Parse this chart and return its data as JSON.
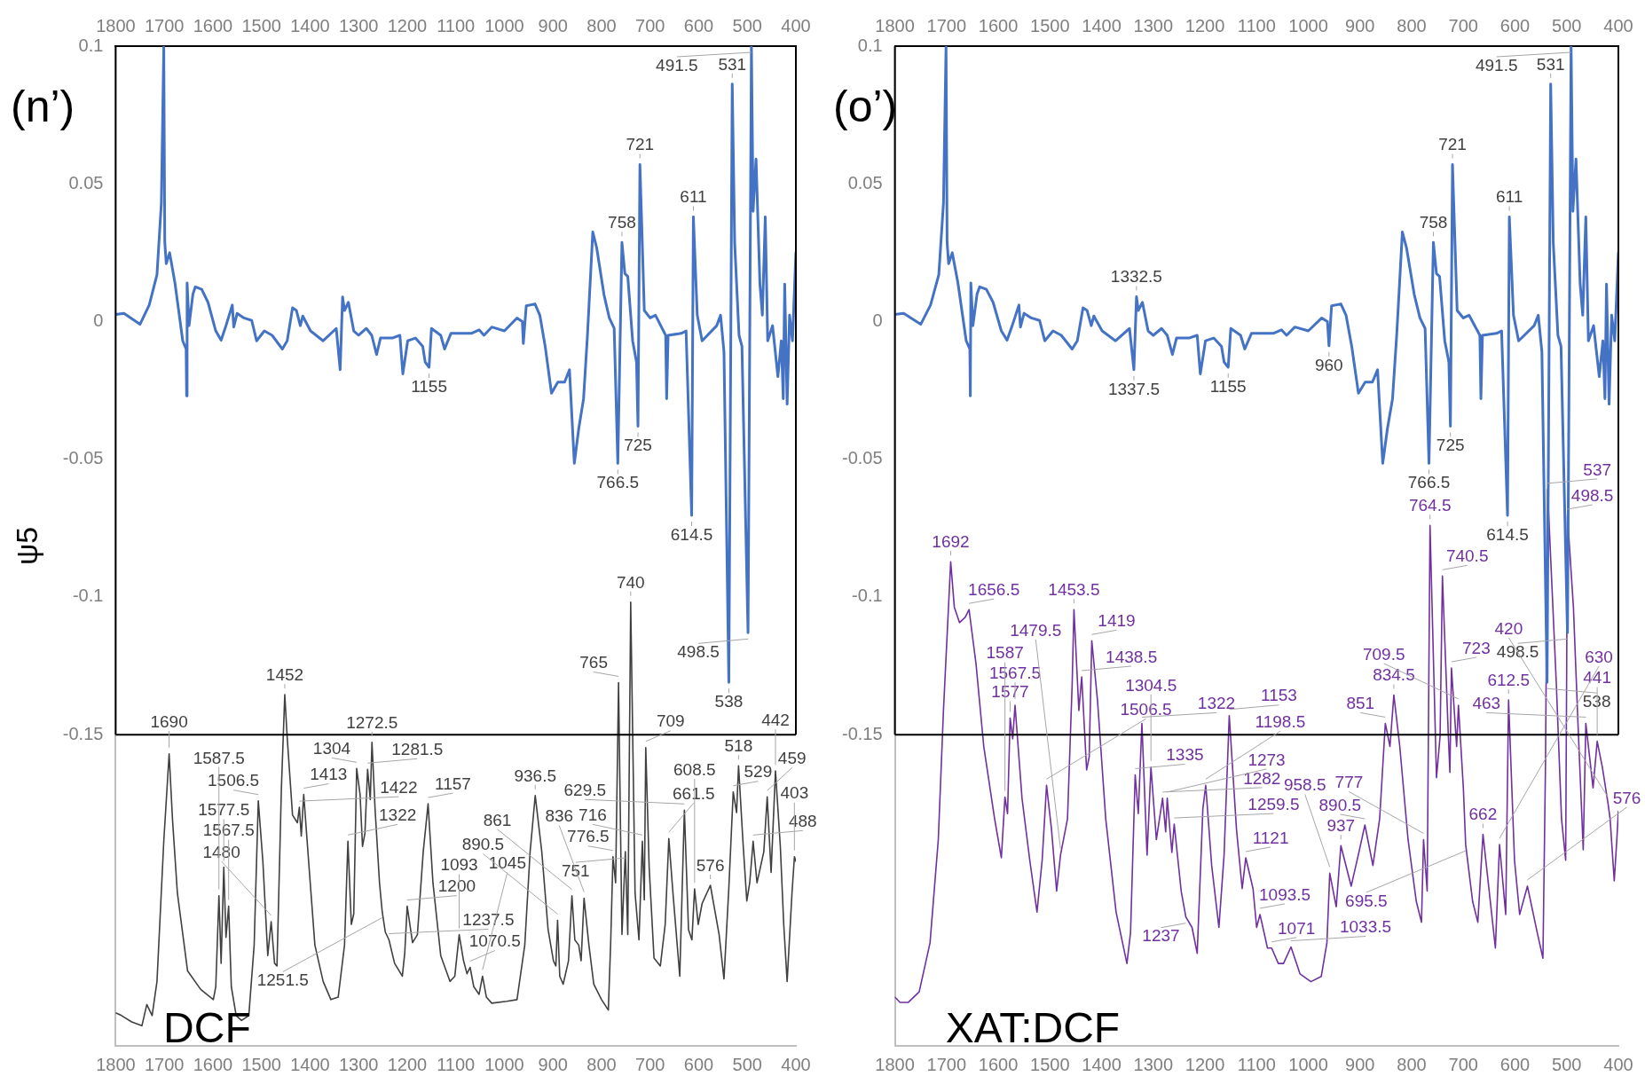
{
  "chart_data": [
    {
      "type": "line",
      "title": "(n’)",
      "ylabel": "ψ5",
      "xlim": [
        1800,
        400
      ],
      "xticks": [
        1800,
        1700,
        1600,
        1500,
        1400,
        1300,
        1200,
        1100,
        1000,
        900,
        800,
        700,
        600,
        500,
        400
      ],
      "x2lim": [
        1800,
        400
      ],
      "x2ticks": [
        1800,
        1700,
        1600,
        1500,
        1400,
        1300,
        1200,
        1100,
        1000,
        900,
        800,
        700,
        600,
        500,
        400
      ],
      "ylim": [
        -0.263,
        0.1
      ],
      "yticks": [
        0.1,
        0.05,
        0,
        -0.05,
        -0.1,
        -0.15
      ],
      "ref_lines": [
        {
          "axis": "y",
          "value": -0.15,
          "color": "#000000"
        }
      ],
      "series": [
        {
          "color": "#4472c4",
          "x": [
            1800,
            1783,
            1750,
            1731,
            1715,
            1706,
            1701,
            1699,
            1696,
            1689,
            1678,
            1662,
            1655,
            1654,
            1653,
            1649,
            1641,
            1636,
            1623,
            1610,
            1594,
            1583,
            1573,
            1560,
            1557,
            1550,
            1536,
            1520,
            1510,
            1494,
            1478,
            1457,
            1447,
            1436,
            1428,
            1420,
            1415,
            1399,
            1373,
            1346,
            1338,
            1333,
            1329,
            1321,
            1310,
            1300,
            1284,
            1273,
            1263,
            1255,
            1231,
            1215,
            1209,
            1199,
            1183,
            1168,
            1163,
            1155,
            1150,
            1131,
            1123,
            1110,
            1068,
            1052,
            1042,
            1026,
            1000,
            974,
            963,
            961,
            955,
            937,
            927,
            916,
            903,
            890,
            876,
            866,
            856,
            847,
            837,
            829,
            818,
            810,
            795,
            784,
            774,
            766.5,
            758,
            752,
            746,
            736,
            728,
            725,
            721,
            712,
            700,
            689,
            668,
            666,
            663,
            636,
            626,
            614.5,
            611,
            603,
            593,
            563,
            555,
            548,
            538,
            531,
            526,
            517,
            511,
            498.5,
            491.5,
            488,
            482,
            474,
            469,
            463,
            458,
            448,
            437,
            430,
            426,
            423,
            418,
            413,
            407,
            400
          ],
          "values": [
            0.0026,
            0.003,
            -0.001,
            0.006,
            0.017,
            0.043,
            0.1,
            0.029,
            0.021,
            0.025,
            0.014,
            -0.007,
            -0.01,
            -0.027,
            0.014,
            -0.0015,
            0.01,
            0.0126,
            0.0117,
            0.007,
            -0.0034,
            -0.0068,
            -0.0015,
            0.006,
            -0.002,
            0.003,
            0.0013,
            0.0004,
            -0.007,
            -0.0034,
            -0.005,
            -0.01,
            -0.007,
            0.005,
            0.004,
            -0.0015,
            0.002,
            -0.0034,
            -0.007,
            -0.0025,
            -0.0175,
            0.0089,
            0.004,
            0.007,
            -0.0034,
            -0.005,
            -0.0025,
            -0.005,
            -0.012,
            -0.006,
            -0.006,
            -0.005,
            -0.019,
            -0.007,
            -0.006,
            -0.009,
            -0.0147,
            -0.0166,
            -0.0025,
            -0.005,
            -0.01,
            -0.0043,
            -0.0043,
            -0.003,
            -0.005,
            -0.002,
            -0.0034,
            0.0013,
            0,
            -0.008,
            0.0057,
            0.0064,
            0.0023,
            -0.009,
            -0.026,
            -0.022,
            -0.022,
            -0.0175,
            -0.0515,
            -0.039,
            -0.028,
            -0.005,
            0.0325,
            0.0268,
            0.0098,
            0.0013,
            -0.0025,
            -0.0515,
            0.0287,
            0.0174,
            0.0164,
            -0.007,
            -0.0147,
            -0.038,
            0.057,
            0.004,
            0.0013,
            0.0023,
            -0.005,
            -0.028,
            -0.005,
            -0.0043,
            -0.0034,
            -0.0704,
            0.038,
            0.0023,
            -0.007,
            -0.0015,
            0.0023,
            -0.011,
            -0.131,
            0.0862,
            0.0287,
            -0.005,
            -0.009,
            -0.113,
            0.1,
            0.04,
            0.059,
            0.0136,
            0.0023,
            0.038,
            -0.007,
            -0.0015,
            -0.02,
            -0.007,
            -0.028,
            0.0136,
            -0.03,
            0.0023,
            -0.007,
            0.025
          ]
        },
        {
          "name": "DCF",
          "color": "#404040",
          "x": [
            1800,
            1788,
            1767,
            1746,
            1736,
            1725,
            1715,
            1701,
            1690,
            1683,
            1673,
            1652,
            1625,
            1599,
            1594,
            1587.5,
            1583,
            1577.5,
            1573,
            1567.5,
            1562,
            1552,
            1541,
            1526,
            1515,
            1506.5,
            1497,
            1487,
            1480,
            1473,
            1468,
            1459,
            1452,
            1447,
            1436,
            1426,
            1422,
            1418,
            1413,
            1402,
            1390,
            1373,
            1357,
            1342,
            1329,
            1322,
            1315,
            1310,
            1304,
            1297,
            1292,
            1287,
            1281.5,
            1276,
            1272.5,
            1266,
            1257,
            1251.5,
            1245,
            1237.5,
            1226,
            1210,
            1205,
            1200,
            1189,
            1179,
            1167,
            1157,
            1147,
            1131,
            1112,
            1102,
            1093,
            1084,
            1077,
            1070.5,
            1063,
            1052,
            1045,
            1037,
            1026,
            995,
            974,
            958,
            947,
            936.5,
            923,
            910,
            899,
            894,
            890.5,
            886,
            879,
            868,
            861,
            855,
            847,
            842,
            836,
            826,
            816,
            800,
            786,
            781,
            776.5,
            771,
            765,
            758,
            751,
            746,
            740,
            731,
            723,
            716,
            712,
            709,
            702,
            692,
            679,
            669,
            661.5,
            653,
            639,
            629.5,
            621,
            614,
            608.5,
            601,
            593,
            576,
            558,
            548,
            538,
            529,
            522,
            518,
            509,
            501,
            495,
            488,
            480,
            466,
            459,
            451,
            442,
            432,
            425,
            418,
            408,
            403,
            400
          ],
          "values": [
            -0.251,
            -0.252,
            -0.2543,
            -0.2557,
            -0.248,
            -0.252,
            -0.2396,
            -0.1887,
            -0.157,
            -0.181,
            -0.2075,
            -0.2358,
            -0.2425,
            -0.2462,
            -0.2415,
            -0.2085,
            -0.233,
            -0.1981,
            -0.2236,
            -0.2123,
            -0.2415,
            -0.252,
            -0.2538,
            -0.252,
            -0.2264,
            -0.174,
            -0.1962,
            -0.2302,
            -0.2179,
            -0.233,
            -0.234,
            -0.1698,
            -0.1355,
            -0.151,
            -0.1792,
            -0.182,
            -0.1764,
            -0.1868,
            -0.1717,
            -0.1981,
            -0.2264,
            -0.2396,
            -0.2462,
            -0.2453,
            -0.2264,
            -0.1887,
            -0.2189,
            -0.2151,
            -0.1623,
            -0.1717,
            -0.1906,
            -0.1858,
            -0.1626,
            -0.1736,
            -0.1528,
            -0.1774,
            -0.2038,
            -0.2142,
            -0.2217,
            -0.2245,
            -0.233,
            -0.2377,
            -0.2292,
            -0.2123,
            -0.2255,
            -0.2226,
            -0.1925,
            -0.1751,
            -0.2038,
            -0.2302,
            -0.2396,
            -0.2377,
            -0.2226,
            -0.2321,
            -0.2368,
            -0.2345,
            -0.2415,
            -0.2443,
            -0.2377,
            -0.2453,
            -0.2475,
            -0.2468,
            -0.2462,
            -0.2264,
            -0.1925,
            -0.1721,
            -0.1925,
            -0.2208,
            -0.2321,
            -0.234,
            -0.2174,
            -0.2377,
            -0.2406,
            -0.2321,
            -0.2085,
            -0.2245,
            -0.2264,
            -0.2321,
            -0.2094,
            -0.2264,
            -0.2406,
            -0.2462,
            -0.25,
            -0.2245,
            -0.1943,
            -0.2038,
            -0.1311,
            -0.2226,
            -0.1925,
            -0.2226,
            -0.1019,
            -0.2075,
            -0.2245,
            -0.1887,
            -0.21,
            -0.1547,
            -0.1981,
            -0.2311,
            -0.234,
            -0.2189,
            -0.1877,
            -0.2075,
            -0.2377,
            -0.1774,
            -0.2208,
            -0.2245,
            -0.206,
            -0.2189,
            -0.2113,
            -0.2047,
            -0.2226,
            -0.2387,
            -0.2057,
            -0.1708,
            -0.1783,
            -0.1613,
            -0.1887,
            -0.2104,
            -0.2038,
            -0.1887,
            -0.2038,
            -0.1925,
            -0.1726,
            -0.2,
            -0.1632,
            -0.1906,
            -0.2189,
            -0.2396,
            -0.2075,
            -0.1943,
            -0.196
          ]
        }
      ],
      "annotations": [
        {
          "text": "531",
          "x": 531,
          "y": 0.0862
        },
        {
          "text": "491.5",
          "x": 491.5,
          "y": 0.1
        },
        {
          "text": "721",
          "x": 721,
          "y": 0.057
        },
        {
          "text": "611",
          "x": 611,
          "y": 0.038
        },
        {
          "text": "758",
          "x": 758,
          "y": 0.0287
        },
        {
          "text": "1155",
          "x": 1155,
          "y": -0.0166
        },
        {
          "text": "725",
          "x": 725,
          "y": -0.038
        },
        {
          "text": "766.5",
          "x": 766.5,
          "y": -0.0515
        },
        {
          "text": "614.5",
          "x": 614.5,
          "y": -0.0704
        },
        {
          "text": "538",
          "x": 538,
          "y": -0.131
        },
        {
          "text": "498.5",
          "x": 498.5,
          "y": -0.113
        },
        {
          "text": "740",
          "x": 740,
          "y": -0.1019
        },
        {
          "text": "751",
          "x": 751,
          "y": -0.1925
        },
        {
          "text": "765",
          "x": 765,
          "y": -0.1311
        },
        {
          "text": "776.5",
          "x": 776.5,
          "y": -0.1943
        },
        {
          "text": "716",
          "x": 716,
          "y": -0.1887
        },
        {
          "text": "709",
          "x": 709,
          "y": -0.1547
        },
        {
          "text": "661.5",
          "x": 661.5,
          "y": -0.1877
        },
        {
          "text": "629.5",
          "x": 629.5,
          "y": -0.1774
        },
        {
          "text": "608.5",
          "x": 608.5,
          "y": -0.206
        },
        {
          "text": "576",
          "x": 576,
          "y": -0.2047
        },
        {
          "text": "529",
          "x": 529,
          "y": -0.1708
        },
        {
          "text": "518",
          "x": 518,
          "y": -0.1613
        },
        {
          "text": "488",
          "x": 488,
          "y": -0.1887
        },
        {
          "text": "459",
          "x": 459,
          "y": -0.1726
        },
        {
          "text": "442",
          "x": 442,
          "y": -0.1632
        },
        {
          "text": "403",
          "x": 403,
          "y": -0.1943
        },
        {
          "text": "1452",
          "x": 1452,
          "y": -0.1355
        },
        {
          "text": "1480",
          "x": 1480,
          "y": -0.2179
        },
        {
          "text": "1506.5",
          "x": 1506.5,
          "y": -0.174
        },
        {
          "text": "1422",
          "x": 1422,
          "y": -0.1764
        },
        {
          "text": "1413",
          "x": 1413,
          "y": -0.1717
        },
        {
          "text": "1690",
          "x": 1690,
          "y": -0.157
        },
        {
          "text": "1567.5",
          "x": 1567.5,
          "y": -0.2123
        },
        {
          "text": "1577.5",
          "x": 1577.5,
          "y": -0.1981
        },
        {
          "text": "1587.5",
          "x": 1587.5,
          "y": -0.2085
        },
        {
          "text": "1304",
          "x": 1304,
          "y": -0.1623
        },
        {
          "text": "1281.5",
          "x": 1281.5,
          "y": -0.1626
        },
        {
          "text": "1272.5",
          "x": 1272.5,
          "y": -0.1528
        },
        {
          "text": "1322",
          "x": 1322,
          "y": -0.1887
        },
        {
          "text": "1251.5",
          "x": 1251.5,
          "y": -0.2142
        },
        {
          "text": "1237.5",
          "x": 1237.5,
          "y": -0.2245
        },
        {
          "text": "1200",
          "x": 1200,
          "y": -0.2123
        },
        {
          "text": "1157",
          "x": 1157,
          "y": -0.1751
        },
        {
          "text": "1093",
          "x": 1093,
          "y": -0.2226
        },
        {
          "text": "1070.5",
          "x": 1070.5,
          "y": -0.2345
        },
        {
          "text": "1045",
          "x": 1045,
          "y": -0.2377
        },
        {
          "text": "936.5",
          "x": 936.5,
          "y": -0.1721
        },
        {
          "text": "890.5",
          "x": 890.5,
          "y": -0.2174
        },
        {
          "text": "861",
          "x": 861,
          "y": -0.2085
        },
        {
          "text": "836",
          "x": 836,
          "y": -0.2094
        }
      ]
    },
    {
      "type": "line",
      "title": "(o’)",
      "xlim": [
        1800,
        400
      ],
      "xticks": [
        1800,
        1700,
        1600,
        1500,
        1400,
        1300,
        1200,
        1100,
        1000,
        900,
        800,
        700,
        600,
        500,
        400
      ],
      "x2lim": [
        1800,
        400
      ],
      "x2ticks": [
        1800,
        1700,
        1600,
        1500,
        1400,
        1300,
        1200,
        1100,
        1000,
        900,
        800,
        700,
        600,
        500,
        400
      ],
      "ylim": [
        -0.263,
        0.1
      ],
      "yticks": [
        0.1,
        0.05,
        0,
        -0.05,
        -0.1,
        -0.15
      ],
      "ref_lines": [
        {
          "axis": "y",
          "value": -0.15,
          "color": "#000000"
        }
      ],
      "series": [
        {
          "color": "#4472c4",
          "x": [
            1800,
            1783,
            1750,
            1731,
            1715,
            1706,
            1701,
            1699,
            1696,
            1689,
            1678,
            1662,
            1655,
            1654,
            1653,
            1649,
            1641,
            1636,
            1623,
            1610,
            1594,
            1583,
            1573,
            1560,
            1557,
            1550,
            1536,
            1520,
            1510,
            1494,
            1478,
            1457,
            1447,
            1436,
            1428,
            1420,
            1415,
            1399,
            1373,
            1346,
            1337.5,
            1332.5,
            1329,
            1321,
            1310,
            1300,
            1284,
            1273,
            1263,
            1255,
            1231,
            1215,
            1209,
            1199,
            1183,
            1168,
            1163,
            1155,
            1150,
            1131,
            1123,
            1110,
            1068,
            1052,
            1042,
            1026,
            1000,
            974,
            963,
            960,
            955,
            937,
            927,
            916,
            903,
            890,
            876,
            866,
            856,
            847,
            837,
            829,
            818,
            810,
            795,
            784,
            774,
            766.5,
            758,
            752,
            746,
            736,
            728,
            725,
            721,
            712,
            700,
            689,
            668,
            666,
            663,
            636,
            626,
            614.5,
            611,
            603,
            593,
            563,
            555,
            548,
            538,
            531,
            526,
            517,
            511,
            498.5,
            491.5,
            488,
            482,
            474,
            469,
            463,
            458,
            448,
            437,
            430,
            426,
            423,
            418,
            413,
            407,
            400
          ],
          "values": [
            0.0026,
            0.003,
            -0.001,
            0.006,
            0.017,
            0.043,
            0.1,
            0.029,
            0.021,
            0.025,
            0.014,
            -0.007,
            -0.01,
            -0.027,
            0.014,
            -0.0015,
            0.01,
            0.0126,
            0.0117,
            0.007,
            -0.0034,
            -0.0068,
            -0.0015,
            0.006,
            -0.002,
            0.003,
            0.0013,
            0.0004,
            -0.007,
            -0.0034,
            -0.005,
            -0.01,
            -0.007,
            0.005,
            0.004,
            -0.0015,
            0.002,
            -0.0034,
            -0.007,
            -0.0025,
            -0.0175,
            0.009,
            0.004,
            0.007,
            -0.0034,
            -0.005,
            -0.0025,
            -0.005,
            -0.012,
            -0.006,
            -0.006,
            -0.005,
            -0.019,
            -0.007,
            -0.006,
            -0.009,
            -0.0147,
            -0.0166,
            -0.0025,
            -0.005,
            -0.01,
            -0.0043,
            -0.0043,
            -0.003,
            -0.005,
            -0.002,
            -0.0034,
            0.0013,
            0,
            -0.0088,
            0.0057,
            0.0064,
            0.0023,
            -0.009,
            -0.026,
            -0.022,
            -0.022,
            -0.0175,
            -0.0515,
            -0.039,
            -0.028,
            -0.005,
            0.0325,
            0.0268,
            0.0098,
            0.0013,
            -0.0025,
            -0.0515,
            0.0287,
            0.0174,
            0.0164,
            -0.007,
            -0.0147,
            -0.038,
            0.057,
            0.004,
            0.0013,
            0.0023,
            -0.005,
            -0.028,
            -0.005,
            -0.0043,
            -0.0034,
            -0.0704,
            0.038,
            0.0023,
            -0.007,
            -0.0015,
            0.0023,
            -0.011,
            -0.131,
            0.0862,
            0.0287,
            -0.005,
            -0.009,
            -0.113,
            0.1,
            0.04,
            0.059,
            0.0136,
            0.0023,
            0.038,
            -0.007,
            -0.0015,
            -0.02,
            -0.007,
            -0.028,
            0.0136,
            -0.03,
            0.0023,
            -0.007,
            0.025
          ]
        },
        {
          "name": "XAT:DCF",
          "color": "#7030a0",
          "x": [
            1800,
            1790,
            1774,
            1753,
            1732,
            1716,
            1706,
            1692,
            1685,
            1675,
            1664,
            1656.5,
            1643,
            1628,
            1607,
            1594,
            1587,
            1582,
            1577,
            1572,
            1567.5,
            1554,
            1539,
            1525,
            1515,
            1506.5,
            1497,
            1487,
            1479.5,
            1466,
            1457,
            1453.5,
            1444,
            1438.5,
            1429,
            1424,
            1419,
            1408,
            1392,
            1372,
            1351,
            1344,
            1335,
            1329,
            1322,
            1312,
            1304.5,
            1294,
            1282,
            1276,
            1273,
            1264,
            1259.5,
            1246,
            1237,
            1225,
            1215,
            1204,
            1198.5,
            1187,
            1173,
            1163,
            1153,
            1139,
            1128,
            1121,
            1107,
            1100,
            1093.5,
            1079,
            1071,
            1058,
            1048,
            1033.5,
            1016,
            995,
            975,
            964,
            958.5,
            946,
            937,
            917,
            901,
            890.5,
            875,
            862,
            851,
            842,
            834.5,
            823,
            807,
            791,
            781,
            777,
            770,
            764.5,
            752,
            745,
            740.5,
            729,
            726,
            723,
            713,
            709.5,
            700,
            695.5,
            682,
            672,
            662,
            650,
            638,
            630,
            618,
            612.5,
            601,
            591,
            576,
            557,
            546,
            541,
            537,
            520,
            510,
            502,
            498.5,
            487,
            478,
            468,
            463,
            449,
            441,
            431,
            420,
            416,
            408,
            403,
            400
          ],
          "values": [
            -0.2453,
            -0.2472,
            -0.2472,
            -0.2434,
            -0.2256,
            -0.1881,
            -0.1412,
            -0.0872,
            -0.1037,
            -0.1093,
            -0.1074,
            -0.1046,
            -0.1243,
            -0.1543,
            -0.1806,
            -0.1947,
            -0.1727,
            -0.1787,
            -0.144,
            -0.1515,
            -0.1393,
            -0.1731,
            -0.1956,
            -0.2144,
            -0.1956,
            -0.1684,
            -0.1843,
            -0.2068,
            -0.1937,
            -0.1806,
            -0.1318,
            -0.1046,
            -0.1412,
            -0.129,
            -0.1628,
            -0.1581,
            -0.1159,
            -0.1374,
            -0.1806,
            -0.2144,
            -0.2331,
            -0.2219,
            -0.1646,
            -0.1787,
            -0.1459,
            -0.1937,
            -0.1618,
            -0.1881,
            -0.1731,
            -0.1853,
            -0.1731,
            -0.1928,
            -0.1825,
            -0.2068,
            -0.2162,
            -0.22,
            -0.2294,
            -0.1768,
            -0.1684,
            -0.1975,
            -0.22,
            -0.1937,
            -0.1431,
            -0.1843,
            -0.2059,
            -0.1947,
            -0.2059,
            -0.22,
            -0.2153,
            -0.2275,
            -0.2275,
            -0.2331,
            -0.2331,
            -0.2271,
            -0.2369,
            -0.2397,
            -0.2378,
            -0.2256,
            -0.2003,
            -0.2125,
            -0.1903,
            -0.205,
            -0.1918,
            -0.1828,
            -0.1975,
            -0.1806,
            -0.1459,
            -0.1543,
            -0.1356,
            -0.1543,
            -0.1881,
            -0.2106,
            -0.2181,
            -0.1881,
            -0.2068,
            -0.074,
            -0.1656,
            -0.1506,
            -0.0924,
            -0.1506,
            -0.1637,
            -0.1258,
            -0.1543,
            -0.1393,
            -0.1693,
            -0.1899,
            -0.2106,
            -0.2181,
            -0.1862,
            -0.2068,
            -0.2275,
            -0.1899,
            -0.2153,
            -0.1374,
            -0.1956,
            -0.2153,
            -0.205,
            -0.2219,
            -0.2312,
            -0.16,
            -0.061,
            -0.1318,
            -0.1806,
            -0.1956,
            -0.0704,
            -0.1037,
            -0.1468,
            -0.1918,
            -0.1459,
            -0.1693,
            -0.1524,
            -0.1618,
            -0.175,
            -0.1806,
            -0.2031,
            -0.1881,
            -0.1778
          ]
        }
      ],
      "annotations": [
        {
          "text": "531",
          "x": 531,
          "y": 0.0862
        },
        {
          "text": "491.5",
          "x": 491.5,
          "y": 0.1
        },
        {
          "text": "721",
          "x": 721,
          "y": 0.057
        },
        {
          "text": "758",
          "x": 758,
          "y": 0.0287
        },
        {
          "text": "611",
          "x": 611,
          "y": 0.038
        },
        {
          "text": "1332.5",
          "x": 1332.5,
          "y": 0.009
        },
        {
          "text": "1337.5",
          "x": 1337.5,
          "y": -0.0175
        },
        {
          "text": "1155",
          "x": 1155,
          "y": -0.0166
        },
        {
          "text": "960",
          "x": 960,
          "y": -0.0088
        },
        {
          "text": "725",
          "x": 725,
          "y": -0.038
        },
        {
          "text": "766.5",
          "x": 766.5,
          "y": -0.0515
        },
        {
          "text": "614.5",
          "x": 614.5,
          "y": -0.0704
        },
        {
          "text": "538",
          "x": 538,
          "y": -0.131
        },
        {
          "text": "498.5",
          "x": 498.5,
          "y": -0.113
        },
        {
          "text": "537",
          "x": 537,
          "y": -0.061
        },
        {
          "text": "498.5",
          "x": 498.5,
          "y": -0.0704
        },
        {
          "text": "764.5",
          "x": 764.5,
          "y": -0.074
        },
        {
          "text": "740.5",
          "x": 740.5,
          "y": -0.0924
        },
        {
          "text": "1692",
          "x": 1692,
          "y": -0.0872
        },
        {
          "text": "1656.5",
          "x": 1656.5,
          "y": -0.1046
        },
        {
          "text": "1577",
          "x": 1577,
          "y": -0.144
        },
        {
          "text": "1567.5",
          "x": 1567.5,
          "y": -0.1393
        },
        {
          "text": "1506.5",
          "x": 1506.5,
          "y": -0.1684
        },
        {
          "text": "1453.5",
          "x": 1453.5,
          "y": -0.1046
        },
        {
          "text": "1438.5",
          "x": 1438.5,
          "y": -0.129
        },
        {
          "text": "1419",
          "x": 1419,
          "y": -0.1159
        },
        {
          "text": "1322",
          "x": 1322,
          "y": -0.1459
        },
        {
          "text": "1335",
          "x": 1335,
          "y": -0.1646
        },
        {
          "text": "1304.5",
          "x": 1304.5,
          "y": -0.1618
        },
        {
          "text": "1282",
          "x": 1282,
          "y": -0.1731
        },
        {
          "text": "1273",
          "x": 1273,
          "y": -0.1731
        },
        {
          "text": "1259.5",
          "x": 1259.5,
          "y": -0.1825
        },
        {
          "text": "1198.5",
          "x": 1198.5,
          "y": -0.1684
        },
        {
          "text": "1153",
          "x": 1153,
          "y": -0.1431
        },
        {
          "text": "834.5",
          "x": 834.5,
          "y": -0.1356
        },
        {
          "text": "851",
          "x": 851,
          "y": -0.1459
        },
        {
          "text": "612.5",
          "x": 612.5,
          "y": -0.1374
        },
        {
          "text": "723",
          "x": 723,
          "y": -0.1258
        },
        {
          "text": "709.5",
          "x": 709.5,
          "y": -0.1393
        },
        {
          "text": "463",
          "x": 463,
          "y": -0.1459
        },
        {
          "text": "441",
          "x": 441,
          "y": -0.1524
        },
        {
          "text": "420",
          "x": 420,
          "y": -0.175
        },
        {
          "text": "890.5",
          "x": 890.5,
          "y": -0.1828
        },
        {
          "text": "1121",
          "x": 1121,
          "y": -0.1947
        },
        {
          "text": "1093.5",
          "x": 1093.5,
          "y": -0.2153
        },
        {
          "text": "662",
          "x": 662,
          "y": -0.1862
        },
        {
          "text": "576",
          "x": 576,
          "y": -0.205
        },
        {
          "text": "1587",
          "x": 1587,
          "y": -0.1727
        },
        {
          "text": "1479.5",
          "x": 1479.5,
          "y": -0.1937
        },
        {
          "text": "937",
          "x": 937,
          "y": -0.1903
        },
        {
          "text": "777",
          "x": 777,
          "y": -0.1881
        },
        {
          "text": "958.5",
          "x": 958.5,
          "y": -0.2003
        },
        {
          "text": "695.5",
          "x": 695.5,
          "y": -0.1899
        },
        {
          "text": "630",
          "x": 630,
          "y": -0.1899
        },
        {
          "text": "1237",
          "x": 1237,
          "y": -0.2162
        },
        {
          "text": "1071",
          "x": 1071,
          "y": -0.2275
        },
        {
          "text": "1033.5",
          "x": 1033.5,
          "y": -0.2271
        }
      ]
    }
  ]
}
